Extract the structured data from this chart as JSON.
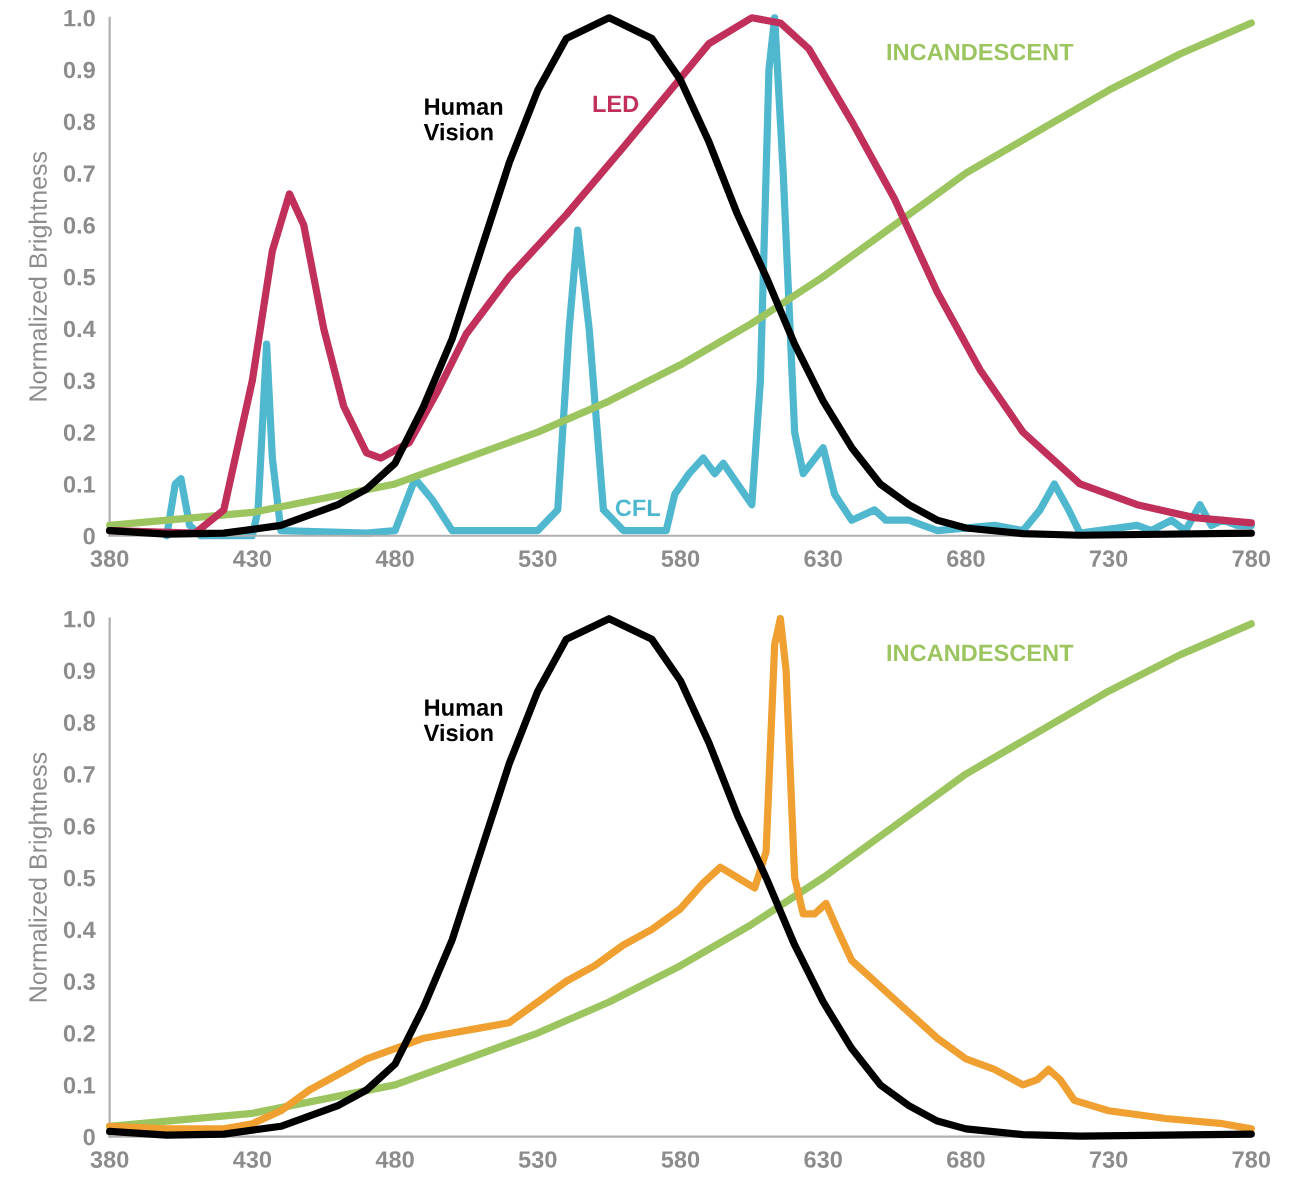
{
  "chart_data": [
    {
      "type": "line",
      "ylabel": "Normalized Brightness",
      "xlim": [
        380,
        780
      ],
      "ylim": [
        0,
        1.0
      ],
      "xticks": [
        380,
        430,
        480,
        530,
        580,
        630,
        680,
        730,
        780
      ],
      "yticks": [
        0,
        0.1,
        0.2,
        0.3,
        0.4,
        0.5,
        0.6,
        0.7,
        0.8,
        0.9,
        {
          "value": 1.0,
          "label": "1.0"
        }
      ],
      "grid": false,
      "legend": false,
      "marker": "none",
      "line_style": "solid",
      "series": [
        {
          "name": "CFL",
          "color": "#4fb8cf",
          "x": [
            400,
            403,
            405,
            408,
            412,
            430,
            432,
            435,
            437,
            440,
            470,
            480,
            487,
            493,
            500,
            530,
            537,
            541,
            544,
            548,
            553,
            560,
            575,
            578,
            583,
            588,
            592,
            595,
            600,
            605,
            608,
            611,
            613,
            616,
            620,
            623,
            630,
            634,
            640,
            648,
            652,
            660,
            670,
            690,
            700,
            706,
            711,
            716,
            720,
            740,
            745,
            752,
            757,
            762,
            766,
            770,
            775,
            780
          ],
          "values": [
            0.0,
            0.1,
            0.11,
            0.02,
            0.0,
            0.0,
            0.05,
            0.37,
            0.15,
            0.01,
            0.005,
            0.01,
            0.11,
            0.07,
            0.01,
            0.01,
            0.05,
            0.4,
            0.59,
            0.4,
            0.05,
            0.01,
            0.01,
            0.08,
            0.12,
            0.15,
            0.12,
            0.14,
            0.1,
            0.06,
            0.3,
            0.9,
            1.0,
            0.7,
            0.2,
            0.12,
            0.17,
            0.08,
            0.03,
            0.05,
            0.03,
            0.03,
            0.01,
            0.02,
            0.01,
            0.05,
            0.1,
            0.05,
            0.005,
            0.02,
            0.01,
            0.03,
            0.01,
            0.06,
            0.02,
            0.03,
            0.02,
            0.02
          ]
        },
        {
          "name": "INCANDESCENT",
          "color": "#9cc560",
          "x": [
            380,
            430,
            480,
            530,
            555,
            580,
            605,
            630,
            655,
            680,
            705,
            730,
            755,
            780
          ],
          "values": [
            0.02,
            0.045,
            0.1,
            0.2,
            0.26,
            0.33,
            0.41,
            0.5,
            0.6,
            0.7,
            0.78,
            0.86,
            0.93,
            0.99
          ]
        },
        {
          "name": "LED",
          "color": "#c0305a",
          "x": [
            380,
            410,
            420,
            430,
            437,
            443,
            448,
            455,
            462,
            470,
            475,
            485,
            495,
            505,
            520,
            540,
            560,
            575,
            590,
            605,
            615,
            625,
            640,
            655,
            670,
            685,
            700,
            720,
            740,
            760,
            780
          ],
          "values": [
            0.01,
            0.005,
            0.05,
            0.3,
            0.55,
            0.66,
            0.6,
            0.4,
            0.25,
            0.16,
            0.15,
            0.18,
            0.28,
            0.39,
            0.5,
            0.62,
            0.75,
            0.85,
            0.95,
            1.0,
            0.99,
            0.94,
            0.8,
            0.65,
            0.47,
            0.32,
            0.2,
            0.1,
            0.06,
            0.035,
            0.025
          ]
        },
        {
          "name": "Human Vision",
          "color": "#000000",
          "x": [
            380,
            400,
            420,
            440,
            460,
            470,
            480,
            490,
            500,
            510,
            520,
            530,
            540,
            555,
            570,
            580,
            590,
            600,
            610,
            620,
            630,
            640,
            650,
            660,
            670,
            680,
            700,
            720,
            780
          ],
          "values": [
            0.01,
            0.003,
            0.005,
            0.02,
            0.06,
            0.09,
            0.14,
            0.25,
            0.38,
            0.55,
            0.72,
            0.86,
            0.96,
            1.0,
            0.96,
            0.88,
            0.76,
            0.62,
            0.5,
            0.37,
            0.26,
            0.17,
            0.1,
            0.06,
            0.03,
            0.015,
            0.004,
            0.001,
            0.005
          ]
        }
      ]
    },
    {
      "type": "line",
      "ylabel": "Normalized Brightness",
      "xlim": [
        380,
        780
      ],
      "ylim": [
        0,
        1.0
      ],
      "xticks": [
        380,
        430,
        480,
        530,
        580,
        630,
        680,
        730,
        780
      ],
      "yticks": [
        0,
        0.1,
        0.2,
        0.3,
        0.4,
        0.5,
        0.6,
        0.7,
        0.8,
        0.9,
        {
          "value": 1.0,
          "label": "1.0"
        }
      ],
      "grid": false,
      "legend": false,
      "marker": "none",
      "line_style": "solid",
      "series": [
        {
          "name": "INCANDESCENT",
          "color": "#9cc560",
          "x": [
            380,
            430,
            480,
            530,
            555,
            580,
            605,
            630,
            655,
            680,
            705,
            730,
            755,
            780
          ],
          "values": [
            0.02,
            0.045,
            0.1,
            0.2,
            0.26,
            0.33,
            0.41,
            0.5,
            0.6,
            0.7,
            0.78,
            0.86,
            0.93,
            0.99
          ]
        },
        {
          "color": "#f0a030",
          "x": [
            380,
            400,
            420,
            430,
            440,
            450,
            460,
            470,
            480,
            490,
            500,
            510,
            520,
            530,
            540,
            550,
            560,
            570,
            580,
            588,
            594,
            600,
            606,
            610,
            613,
            615,
            617,
            620,
            623,
            627,
            631,
            635,
            640,
            650,
            660,
            670,
            680,
            690,
            700,
            705,
            709,
            713,
            718,
            730,
            750,
            770,
            780
          ],
          "values": [
            0.02,
            0.015,
            0.015,
            0.025,
            0.05,
            0.09,
            0.12,
            0.15,
            0.17,
            0.19,
            0.2,
            0.21,
            0.22,
            0.26,
            0.3,
            0.33,
            0.37,
            0.4,
            0.44,
            0.49,
            0.52,
            0.5,
            0.48,
            0.55,
            0.95,
            1.0,
            0.9,
            0.5,
            0.43,
            0.43,
            0.45,
            0.4,
            0.34,
            0.29,
            0.24,
            0.19,
            0.15,
            0.13,
            0.1,
            0.11,
            0.13,
            0.11,
            0.07,
            0.05,
            0.035,
            0.025,
            0.015
          ]
        },
        {
          "name": "Human Vision",
          "color": "#000000",
          "x": [
            380,
            400,
            420,
            440,
            460,
            470,
            480,
            490,
            500,
            510,
            520,
            530,
            540,
            555,
            570,
            580,
            590,
            600,
            610,
            620,
            630,
            640,
            650,
            660,
            670,
            680,
            700,
            720,
            780
          ],
          "values": [
            0.01,
            0.003,
            0.005,
            0.02,
            0.06,
            0.09,
            0.14,
            0.25,
            0.38,
            0.55,
            0.72,
            0.86,
            0.96,
            1.0,
            0.96,
            0.88,
            0.76,
            0.62,
            0.5,
            0.37,
            0.26,
            0.17,
            0.1,
            0.06,
            0.03,
            0.015,
            0.004,
            0.001,
            0.005
          ]
        }
      ]
    }
  ]
}
